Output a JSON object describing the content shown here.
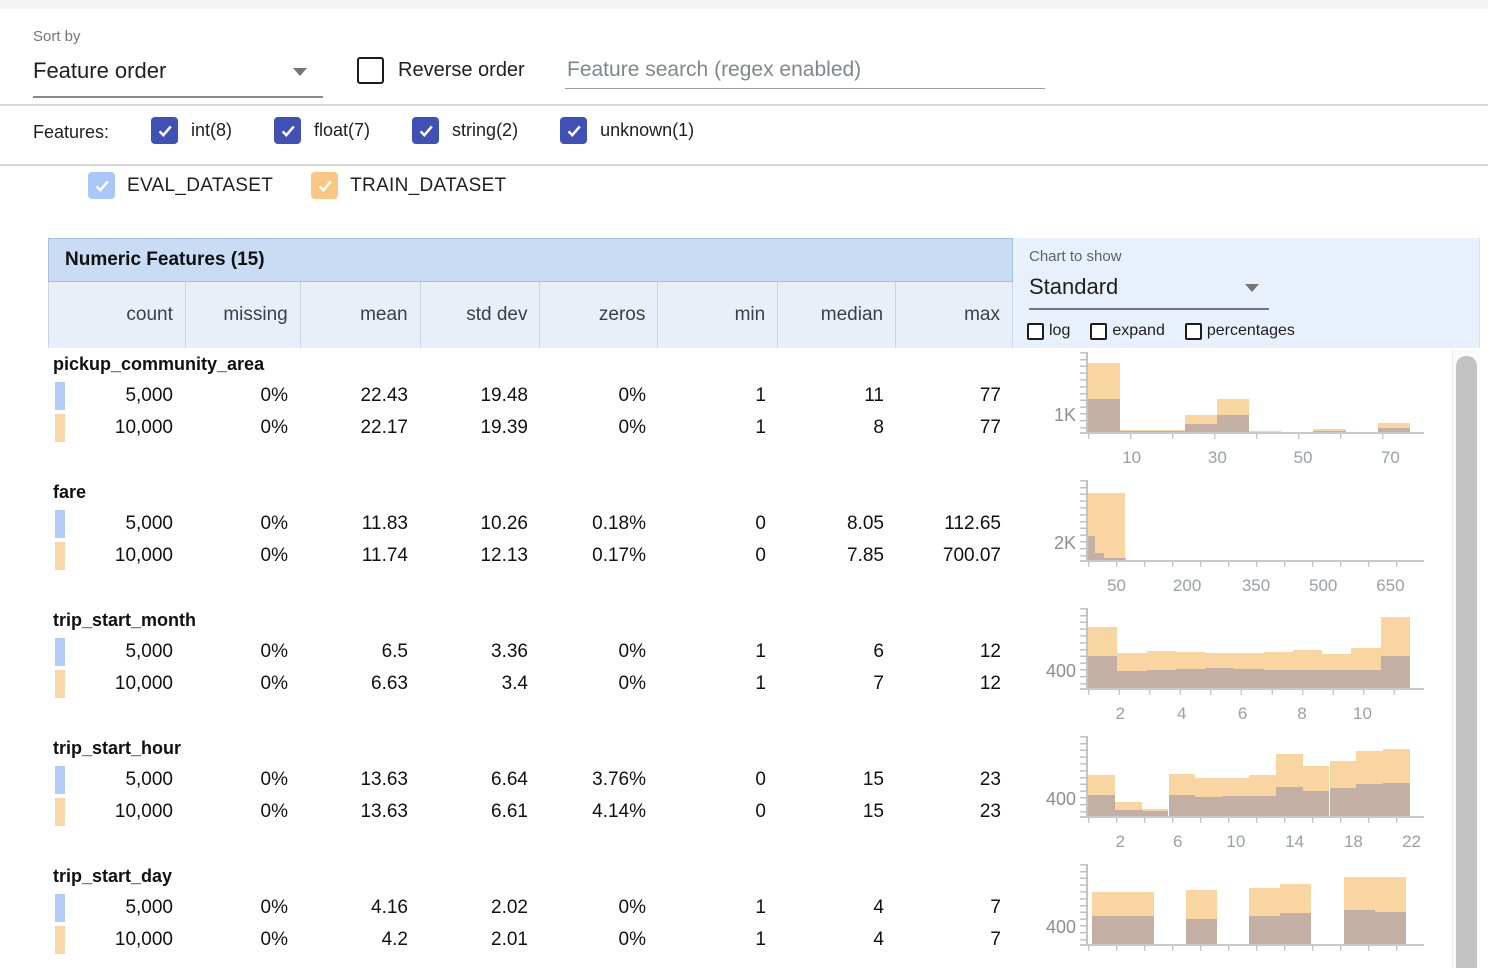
{
  "toolbar": {
    "sort_by_label": "Sort by",
    "sort_by_value": "Feature order",
    "reverse_order_label": "Reverse order",
    "reverse_order_checked": false,
    "search_placeholder": "Feature search (regex enabled)"
  },
  "feature_filters": {
    "label": "Features:",
    "items": [
      {
        "label": "int(8)",
        "checked": true
      },
      {
        "label": "float(7)",
        "checked": true
      },
      {
        "label": "string(2)",
        "checked": true
      },
      {
        "label": "unknown(1)",
        "checked": true
      }
    ]
  },
  "datasets": [
    {
      "name": "EVAL_DATASET",
      "checked": true,
      "legend_color": "#a9c7f8",
      "swatch_color": "#b3cdf8"
    },
    {
      "name": "TRAIN_DATASET",
      "checked": true,
      "legend_color": "#f9c781",
      "swatch_color": "#f8d7a8"
    }
  ],
  "table": {
    "title": "Numeric Features (15)",
    "columns": [
      "count",
      "missing",
      "mean",
      "std dev",
      "zeros",
      "min",
      "median",
      "max"
    ],
    "chart_controls": {
      "label": "Chart to show",
      "selected": "Standard",
      "options": [
        {
          "label": "log",
          "checked": false
        },
        {
          "label": "expand",
          "checked": false
        },
        {
          "label": "percentages",
          "checked": false
        }
      ]
    },
    "features": [
      {
        "name": "pickup_community_area",
        "rows": [
          {
            "dataset": "EVAL_DATASET",
            "values": [
              "5,000",
              "0%",
              "22.43",
              "19.48",
              "0%",
              "1",
              "11",
              "77"
            ]
          },
          {
            "dataset": "TRAIN_DATASET",
            "values": [
              "10,000",
              "0%",
              "22.17",
              "19.39",
              "0%",
              "1",
              "8",
              "77"
            ]
          }
        ]
      },
      {
        "name": "fare",
        "rows": [
          {
            "dataset": "EVAL_DATASET",
            "values": [
              "5,000",
              "0%",
              "11.83",
              "10.26",
              "0.18%",
              "0",
              "8.05",
              "112.65"
            ]
          },
          {
            "dataset": "TRAIN_DATASET",
            "values": [
              "10,000",
              "0%",
              "11.74",
              "12.13",
              "0.17%",
              "0",
              "7.85",
              "700.07"
            ]
          }
        ]
      },
      {
        "name": "trip_start_month",
        "rows": [
          {
            "dataset": "EVAL_DATASET",
            "values": [
              "5,000",
              "0%",
              "6.5",
              "3.36",
              "0%",
              "1",
              "6",
              "12"
            ]
          },
          {
            "dataset": "TRAIN_DATASET",
            "values": [
              "10,000",
              "0%",
              "6.63",
              "3.4",
              "0%",
              "1",
              "7",
              "12"
            ]
          }
        ]
      },
      {
        "name": "trip_start_hour",
        "rows": [
          {
            "dataset": "EVAL_DATASET",
            "values": [
              "5,000",
              "0%",
              "13.63",
              "6.64",
              "3.76%",
              "0",
              "15",
              "23"
            ]
          },
          {
            "dataset": "TRAIN_DATASET",
            "values": [
              "10,000",
              "0%",
              "13.63",
              "6.61",
              "4.14%",
              "0",
              "15",
              "23"
            ]
          }
        ]
      },
      {
        "name": "trip_start_day",
        "rows": [
          {
            "dataset": "EVAL_DATASET",
            "values": [
              "5,000",
              "0%",
              "4.16",
              "2.02",
              "0%",
              "1",
              "4",
              "7"
            ]
          },
          {
            "dataset": "TRAIN_DATASET",
            "values": [
              "10,000",
              "0%",
              "4.2",
              "2.01",
              "0%",
              "1",
              "4",
              "7"
            ]
          }
        ]
      }
    ]
  },
  "chart_data": [
    {
      "feature": "pickup_community_area",
      "type": "histogram-overlay",
      "series": [
        "TRAIN_DATASET",
        "EVAL_DATASET"
      ],
      "x_axis_range": [
        1,
        77
      ],
      "ymax": 4800,
      "y_tick": {
        "label": "1K",
        "value": 1000
      },
      "x_ticks": [
        {
          "label": "10",
          "pos": 0.13
        },
        {
          "label": "30",
          "pos": 0.385
        },
        {
          "label": "50",
          "pos": 0.64
        },
        {
          "label": "70",
          "pos": 0.9
        }
      ],
      "x_minor_ticks": 8,
      "bar_format": "[x_fraction, width_fraction, approx_count]",
      "train_bars": [
        [
          0.0,
          0.1,
          4300
        ],
        [
          0.1,
          0.1,
          95
        ],
        [
          0.2,
          0.1,
          145
        ],
        [
          0.3,
          0.1,
          1090
        ],
        [
          0.4,
          0.1,
          2040
        ],
        [
          0.5,
          0.1,
          50
        ],
        [
          0.6,
          0.1,
          25
        ],
        [
          0.7,
          0.1,
          190
        ],
        [
          0.8,
          0.1,
          25
        ],
        [
          0.9,
          0.1,
          570
        ]
      ],
      "eval_bars": [
        [
          0.0,
          0.1,
          2080
        ],
        [
          0.1,
          0.1,
          45
        ],
        [
          0.2,
          0.1,
          50
        ],
        [
          0.3,
          0.1,
          505
        ],
        [
          0.4,
          0.1,
          1030
        ],
        [
          0.5,
          0.1,
          20
        ],
        [
          0.6,
          0.1,
          10
        ],
        [
          0.7,
          0.1,
          50
        ],
        [
          0.8,
          0.1,
          10
        ],
        [
          0.9,
          0.1,
          250
        ]
      ]
    },
    {
      "feature": "fare",
      "type": "histogram-overlay",
      "series": [
        "TRAIN_DATASET",
        "EVAL_DATASET"
      ],
      "x_axis_range": [
        0,
        700
      ],
      "ymax": 10000,
      "y_tick": {
        "label": "2K",
        "value": 2000
      },
      "x_ticks": [
        {
          "label": "50",
          "pos": 0.085
        },
        {
          "label": "200",
          "pos": 0.295
        },
        {
          "label": "350",
          "pos": 0.5
        },
        {
          "label": "500",
          "pos": 0.7
        },
        {
          "label": "650",
          "pos": 0.9
        }
      ],
      "x_minor_ticks": 12,
      "bar_format": "[x_fraction, width_fraction, approx_count]",
      "train_bars": [
        [
          0.0,
          0.115,
          8750
        ]
      ],
      "eval_bars": [
        [
          0.0,
          0.022,
          3170
        ],
        [
          0.022,
          0.028,
          900
        ],
        [
          0.05,
          0.068,
          250
        ]
      ]
    },
    {
      "feature": "trip_start_month",
      "type": "histogram-overlay",
      "series": [
        "TRAIN_DATASET",
        "EVAL_DATASET"
      ],
      "x_axis_range": [
        1,
        12
      ],
      "ymax": 1800,
      "y_tick": {
        "label": "400",
        "value": 400
      },
      "x_ticks": [
        {
          "label": "2",
          "pos": 0.096
        },
        {
          "label": "4",
          "pos": 0.279
        },
        {
          "label": "6",
          "pos": 0.46
        },
        {
          "label": "8",
          "pos": 0.637
        },
        {
          "label": "10",
          "pos": 0.817
        }
      ],
      "x_minor_ticks": 11,
      "bar_format": "[x_fraction, width_fraction, approx_count]",
      "train_bars": [
        [
          0.0,
          0.0909,
          1420
        ],
        [
          0.0909,
          0.0909,
          810
        ],
        [
          0.1818,
          0.0909,
          865
        ],
        [
          0.2727,
          0.0909,
          845
        ],
        [
          0.3636,
          0.0909,
          830
        ],
        [
          0.4545,
          0.0909,
          825
        ],
        [
          0.5455,
          0.0909,
          845
        ],
        [
          0.6364,
          0.0909,
          880
        ],
        [
          0.7273,
          0.0909,
          790
        ],
        [
          0.8182,
          0.0909,
          935
        ],
        [
          0.9091,
          0.0909,
          1660
        ]
      ],
      "eval_bars": [
        [
          0.0,
          0.0909,
          745
        ],
        [
          0.0909,
          0.0909,
          400
        ],
        [
          0.1818,
          0.0909,
          425
        ],
        [
          0.2727,
          0.0909,
          450
        ],
        [
          0.3636,
          0.0909,
          470
        ],
        [
          0.4545,
          0.0909,
          450
        ],
        [
          0.5455,
          0.0909,
          415
        ],
        [
          0.6364,
          0.0909,
          430
        ],
        [
          0.7273,
          0.0909,
          415
        ],
        [
          0.8182,
          0.0909,
          425
        ],
        [
          0.9091,
          0.0909,
          745
        ]
      ]
    },
    {
      "feature": "trip_start_hour",
      "type": "histogram-overlay",
      "series": [
        "TRAIN_DATASET",
        "EVAL_DATASET"
      ],
      "x_axis_range": [
        0,
        23
      ],
      "ymax": 1800,
      "y_tick": {
        "label": "400",
        "value": 400
      },
      "x_ticks": [
        {
          "label": "2",
          "pos": 0.096
        },
        {
          "label": "6",
          "pos": 0.267
        },
        {
          "label": "10",
          "pos": 0.44
        },
        {
          "label": "14",
          "pos": 0.615
        },
        {
          "label": "18",
          "pos": 0.79
        },
        {
          "label": "22",
          "pos": 0.963
        }
      ],
      "x_minor_ticks": 12,
      "bar_format": "[x_fraction, width_fraction, approx_count]",
      "train_bars": [
        [
          0.0,
          0.0833,
          950
        ],
        [
          0.0833,
          0.0833,
          330
        ],
        [
          0.1667,
          0.0833,
          160
        ],
        [
          0.25,
          0.0833,
          980
        ],
        [
          0.3333,
          0.0833,
          885
        ],
        [
          0.4167,
          0.0833,
          900
        ],
        [
          0.5,
          0.0833,
          965
        ],
        [
          0.5833,
          0.0833,
          1460
        ],
        [
          0.6667,
          0.0833,
          1160
        ],
        [
          0.75,
          0.0833,
          1280
        ],
        [
          0.8333,
          0.0833,
          1530
        ],
        [
          0.9167,
          0.0833,
          1565
        ]
      ],
      "eval_bars": [
        [
          0.0,
          0.0833,
          500
        ],
        [
          0.0833,
          0.0833,
          135
        ],
        [
          0.1667,
          0.0833,
          110
        ],
        [
          0.25,
          0.0833,
          490
        ],
        [
          0.3333,
          0.0833,
          450
        ],
        [
          0.4167,
          0.0833,
          465
        ],
        [
          0.5,
          0.0833,
          470
        ],
        [
          0.5833,
          0.0833,
          685
        ],
        [
          0.6667,
          0.0833,
          585
        ],
        [
          0.75,
          0.0833,
          665
        ],
        [
          0.8333,
          0.0833,
          740
        ],
        [
          0.9167,
          0.0833,
          780
        ]
      ]
    },
    {
      "feature": "trip_start_day",
      "type": "histogram-overlay",
      "series": [
        "TRAIN_DATASET",
        "EVAL_DATASET"
      ],
      "x_axis_range": [
        1,
        7
      ],
      "ymax": 1800,
      "y_tick": {
        "label": "400",
        "value": 400
      },
      "x_ticks": [],
      "x_minor_ticks": 12,
      "bar_format": "[x_fraction, width_fraction, approx_count]",
      "train_bars": [
        [
          0.012,
          0.096,
          1225
        ],
        [
          0.108,
          0.096,
          1225
        ],
        [
          0.305,
          0.096,
          1270
        ],
        [
          0.5,
          0.096,
          1300
        ],
        [
          0.597,
          0.096,
          1395
        ],
        [
          0.795,
          0.096,
          1575
        ],
        [
          0.892,
          0.096,
          1565
        ]
      ],
      "eval_bars": [
        [
          0.012,
          0.096,
          665
        ],
        [
          0.108,
          0.096,
          655
        ],
        [
          0.305,
          0.096,
          585
        ],
        [
          0.5,
          0.096,
          665
        ],
        [
          0.597,
          0.096,
          720
        ],
        [
          0.795,
          0.096,
          795
        ],
        [
          0.892,
          0.096,
          760
        ]
      ]
    }
  ],
  "colors": {
    "filter_checkbox": "#3f51b5",
    "train_bar": "#f9d5a2",
    "eval_bar_overlay": "rgba(128,128,164,0.45)",
    "table_header_strip": "#c9dcf4",
    "stats_header_bg": "#e9eff9",
    "chart_panel_bg": "#e8f0fb"
  }
}
